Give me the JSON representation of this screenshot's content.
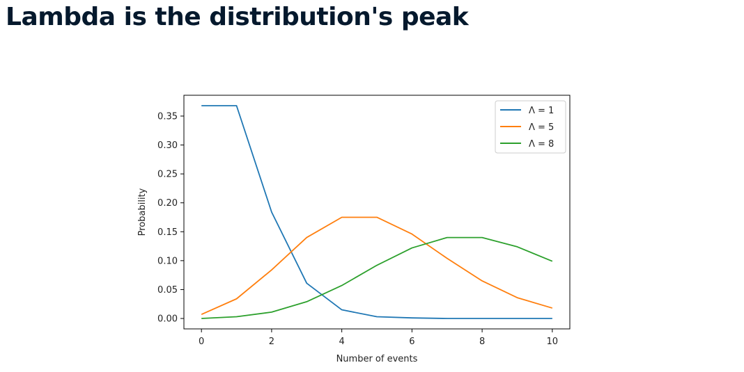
{
  "page": {
    "title": "Lambda is the distribution's peak"
  },
  "chart_data": {
    "type": "line",
    "title": "",
    "xlabel": "Number of events",
    "ylabel": "Probability",
    "xlim": [
      -0.5,
      10.5
    ],
    "ylim": [
      -0.018,
      0.386
    ],
    "xticks": [
      0,
      2,
      4,
      6,
      8,
      10
    ],
    "yticks": [
      0.0,
      0.05,
      0.1,
      0.15,
      0.2,
      0.25,
      0.3,
      0.35
    ],
    "ytick_labels": [
      "0.00",
      "0.05",
      "0.10",
      "0.15",
      "0.20",
      "0.25",
      "0.30",
      "0.35"
    ],
    "x": [
      0,
      1,
      2,
      3,
      4,
      5,
      6,
      7,
      8,
      9,
      10
    ],
    "grid": false,
    "legend_position": "top-right",
    "series": [
      {
        "name": "Λ = 1",
        "color": "#1f77b4",
        "values": [
          0.368,
          0.368,
          0.184,
          0.061,
          0.015,
          0.003,
          0.001,
          0.0,
          0.0,
          0.0,
          0.0
        ]
      },
      {
        "name": "Λ = 5",
        "color": "#ff7f0e",
        "values": [
          0.007,
          0.034,
          0.084,
          0.14,
          0.175,
          0.175,
          0.146,
          0.104,
          0.065,
          0.036,
          0.018
        ]
      },
      {
        "name": "Λ = 8",
        "color": "#2ca02c",
        "values": [
          0.0,
          0.003,
          0.011,
          0.029,
          0.057,
          0.092,
          0.122,
          0.14,
          0.14,
          0.124,
          0.099
        ]
      }
    ]
  }
}
